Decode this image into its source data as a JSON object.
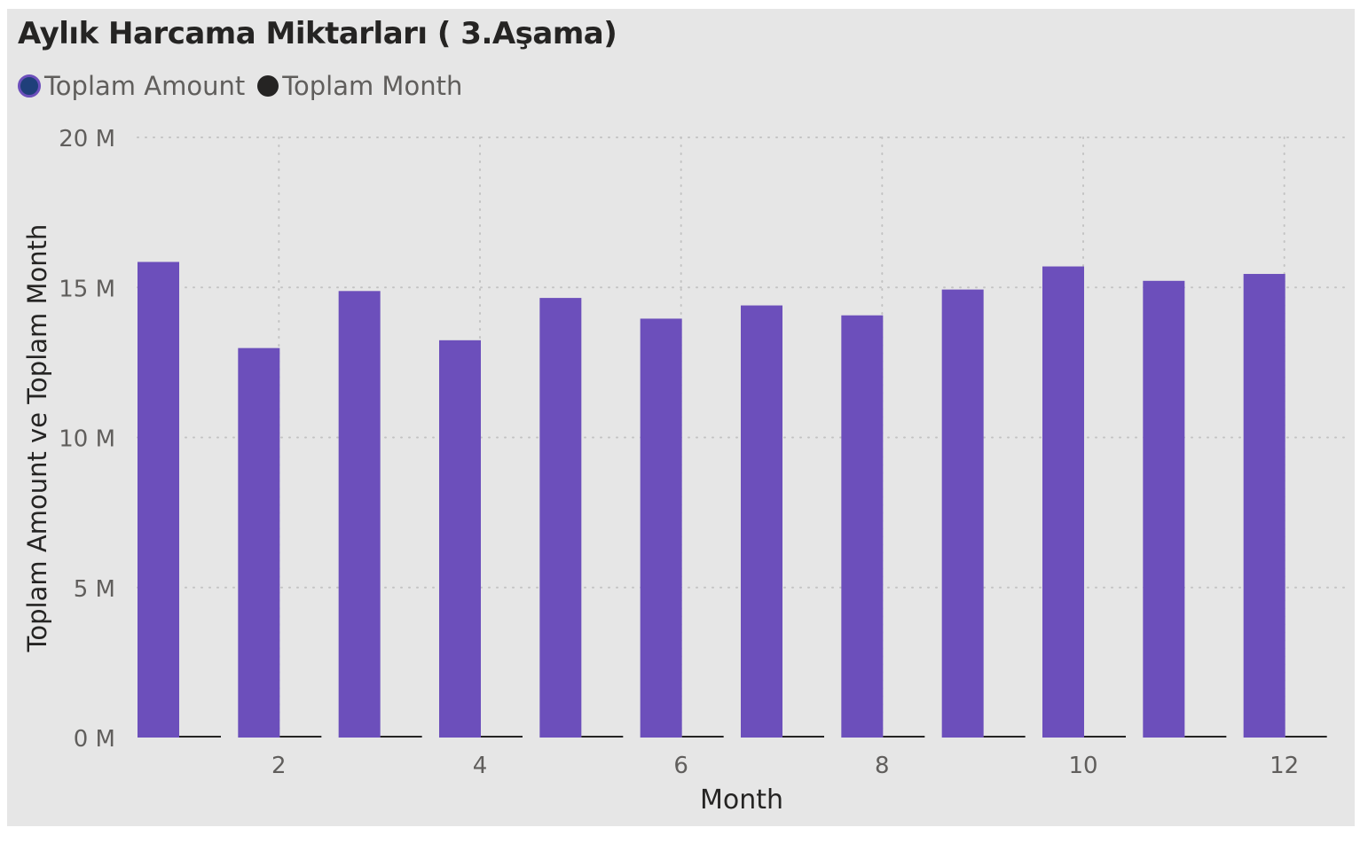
{
  "title": "Aylık Harcama Miktarları ( 3.Aşama)",
  "legend": {
    "items": [
      {
        "label": "Toplam Amount",
        "color": "#6c4fbb",
        "inner_color": "#1f3f7a"
      },
      {
        "label": "Toplam Month",
        "color": "#252423"
      }
    ]
  },
  "colors": {
    "background": "#e6e6e6",
    "bar": "#6c4fbb",
    "second_series": "#252423",
    "gridline": "#c3c3c3",
    "tick_text": "#605e5c",
    "axis_title": "#252423"
  },
  "chart_data": {
    "type": "bar",
    "title": "Aylık Harcama Miktarları ( 3.Aşama)",
    "xlabel": "Month",
    "ylabel": "Toplam Amount ve Toplam Month",
    "categories": [
      1,
      2,
      3,
      4,
      5,
      6,
      7,
      8,
      9,
      10,
      11,
      12
    ],
    "x_tick_labels": [
      "2",
      "4",
      "6",
      "8",
      "10",
      "12"
    ],
    "y_tick_labels": [
      "0 M",
      "5 M",
      "10 M",
      "15 M",
      "20 M"
    ],
    "y_ticks": [
      0,
      5000000,
      10000000,
      15000000,
      20000000
    ],
    "ylim": [
      0,
      20000000
    ],
    "grid": true,
    "legend_position": "top-left",
    "series": [
      {
        "name": "Toplam Amount",
        "values": [
          15850000,
          12980000,
          14880000,
          13240000,
          14650000,
          13960000,
          14400000,
          14070000,
          14930000,
          15700000,
          15220000,
          15450000
        ]
      },
      {
        "name": "Toplam Month",
        "values": [
          1,
          2,
          3,
          4,
          5,
          6,
          7,
          8,
          9,
          10,
          11,
          12
        ]
      }
    ]
  }
}
